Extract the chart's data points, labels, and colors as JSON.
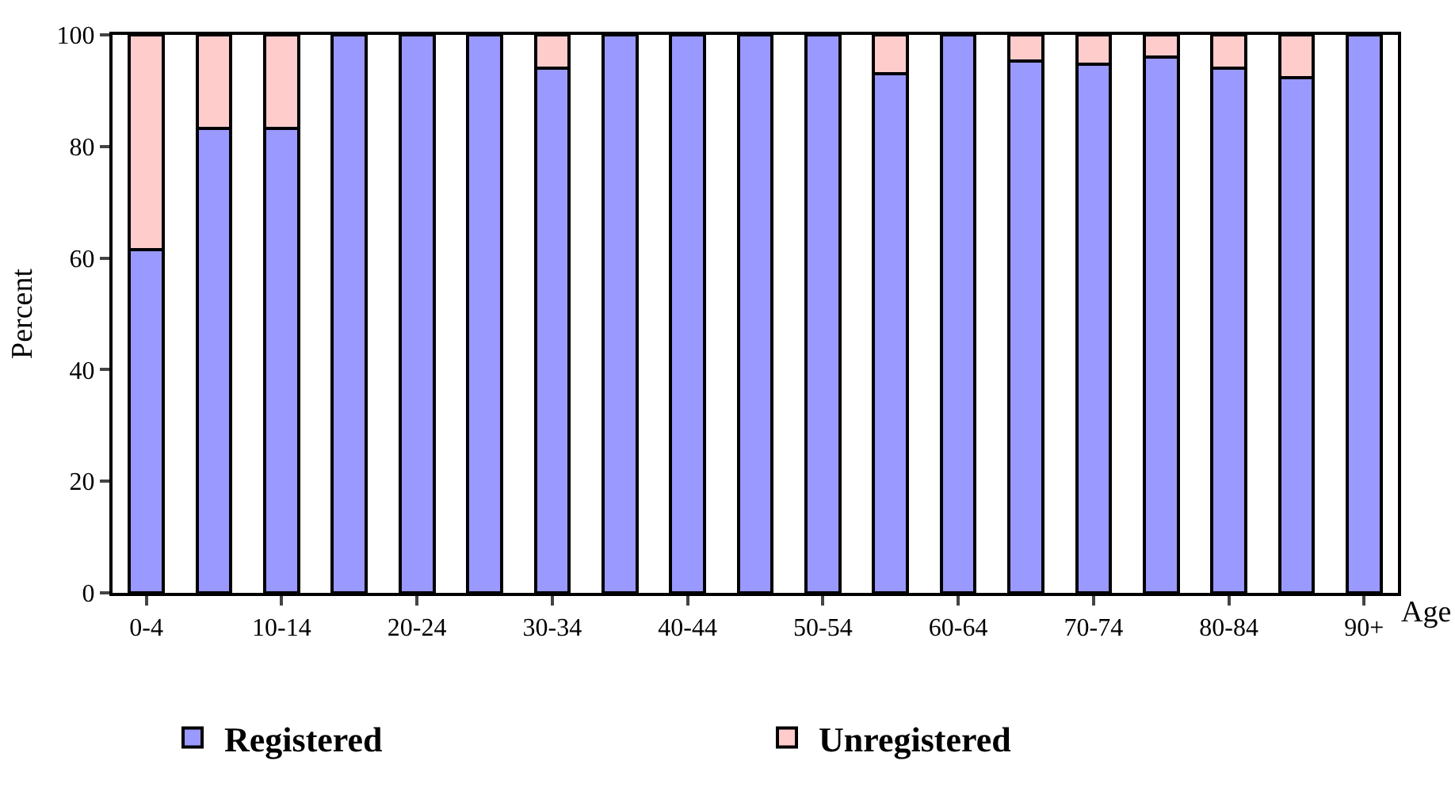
{
  "chart_data": {
    "type": "bar",
    "stacked": true,
    "xlabel": "Age",
    "ylabel": "Percent",
    "categories": [
      "0-4",
      null,
      "10-14",
      null,
      "20-24",
      null,
      "30-34",
      null,
      "40-44",
      null,
      "50-54",
      null,
      "60-64",
      null,
      "70-74",
      null,
      "80-84",
      null,
      "90+"
    ],
    "series": [
      {
        "name": "Registered",
        "color": "#9999ff",
        "values": [
          61.5,
          83.3,
          83.3,
          100,
          100,
          100,
          94,
          100,
          100,
          100,
          100,
          93,
          100,
          95.3,
          94.7,
          96,
          94,
          92.3,
          100
        ]
      },
      {
        "name": "Unregistered",
        "color": "#ffcccc",
        "values": [
          38.5,
          16.7,
          16.7,
          0,
          0,
          0,
          6,
          0,
          0,
          0,
          0,
          7,
          0,
          4.7,
          5.3,
          4,
          6,
          7.7,
          0
        ]
      }
    ],
    "ylim": [
      0,
      100
    ],
    "yticks": [
      0,
      20,
      40,
      60,
      80,
      100
    ],
    "legend": "bottom"
  }
}
